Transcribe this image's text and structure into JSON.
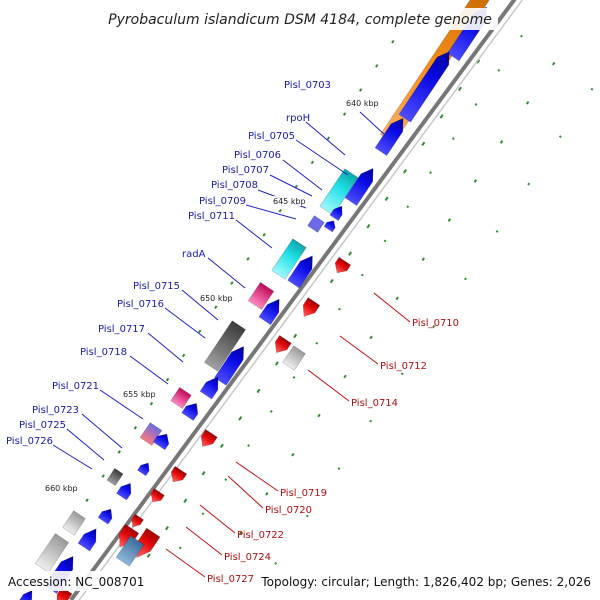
{
  "title": "Pyrobaculum islandicum DSM 4184, complete genome",
  "footer": {
    "accession": "Accession: NC_008701",
    "summary": "Topology: circular; Length: 1,826,402 bp; Genes: 2,026"
  },
  "ticks": [
    "640 kbp",
    "645 kbp",
    "650 kbp",
    "655 kbp",
    "660 kbp"
  ],
  "forward_labels": [
    "Pisl_0703",
    "rpoH",
    "Pisl_0705",
    "Pisl_0706",
    "Pisl_0707",
    "Pisl_0708",
    "Pisl_0709",
    "Pisl_0711",
    "radA",
    "Pisl_0715",
    "Pisl_0716",
    "Pisl_0717",
    "Pisl_0718",
    "Pisl_0721",
    "Pisl_0723",
    "Pisl_0725",
    "Pisl_0726"
  ],
  "reverse_labels": [
    "Pisl_0710",
    "Pisl_0712",
    "Pisl_0714",
    "Pisl_0719",
    "Pisl_0720",
    "Pisl_0722",
    "Pisl_0724",
    "Pisl_0727"
  ],
  "colors": {
    "backbone": "#888888",
    "cds_forward": "#0a0ae6",
    "cds_reverse": "#e60a0a",
    "orange": "#f58c16",
    "cyan": "#1fe0e6",
    "magenta": "#e6207a",
    "gray": "#666666",
    "gc_dots": "#2e8b2e"
  }
}
